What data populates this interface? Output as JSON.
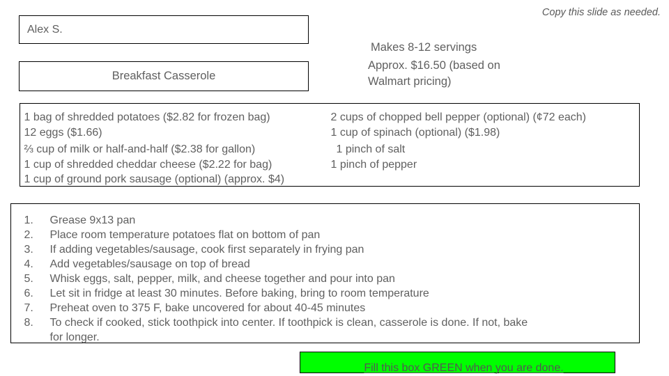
{
  "slide": {
    "copy_note": "Copy this slide as needed.",
    "student_name": "Alex S.",
    "recipe_title": "Breakfast Casserole",
    "servings": "Makes 8-12 servings",
    "cost_note": "Approx. $16.50 (based on Walmart pricing)"
  },
  "ingredients": {
    "left_column": [
      "1 bag of shredded potatoes ($2.82 for frozen bag)",
      "12 eggs ($1.66)",
      "⅔ cup of milk or half-and-half ($2.38 for gallon)",
      "1 cup of shredded cheddar cheese ($2.22 for bag)",
      "1 cup of ground pork sausage (optional) (approx. $4)"
    ],
    "right_column": [
      "2 cups of chopped bell pepper (optional) (¢72 each)",
      "1 cup of spinach (optional) ($1.98)",
      "1 pinch of salt",
      "1 pinch of pepper"
    ]
  },
  "instructions": {
    "items": [
      {
        "num": "1.",
        "text": "Grease 9x13 pan"
      },
      {
        "num": "2.",
        "text": "Place room temperature potatoes flat on bottom of pan"
      },
      {
        "num": "3.",
        "text": "If adding vegetables/sausage, cook first separately in frying pan"
      },
      {
        "num": "4.",
        "text": "Add vegetables/sausage on top of bread"
      },
      {
        "num": "5.",
        "text": "Whisk eggs, salt, pepper, milk, and cheese together and pour into pan"
      },
      {
        "num": "6.",
        "text": "Let sit in fridge at least 30 minutes. Before baking, bring to room temperature"
      },
      {
        "num": "7.",
        "text": "Preheat oven to 375 F, bake uncovered for about 40-45 minutes"
      },
      {
        "num": "8.",
        "text": "To check if cooked, stick toothpick into center. If toothpick is clean, casserole is done. If not, bake for longer."
      }
    ]
  },
  "done_box": {
    "label": "Fill this box GREEN when you are done.",
    "fill_color": "#00FF00"
  },
  "colors": {
    "text_gray": "#5F5F5F",
    "border_black": "#000000"
  }
}
